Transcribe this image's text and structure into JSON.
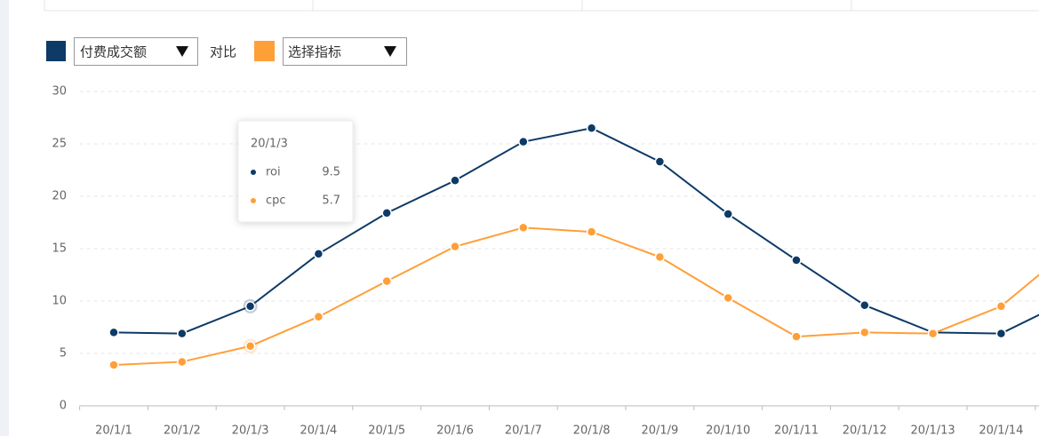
{
  "controls": {
    "metric": "付费成交额",
    "compare_label": "对比",
    "compare_metric": "选择指标"
  },
  "chart_data": {
    "type": "line",
    "categories": [
      "20/1/1",
      "20/1/2",
      "20/1/3",
      "20/1/4",
      "20/1/5",
      "20/1/6",
      "20/1/7",
      "20/1/8",
      "20/1/9",
      "20/1/10",
      "20/1/11",
      "20/1/12",
      "20/1/13",
      "20/1/14",
      null
    ],
    "series": [
      {
        "name": "roi",
        "color": "#0d3a66",
        "values": [
          7.0,
          6.9,
          9.5,
          14.5,
          18.4,
          21.5,
          25.2,
          26.5,
          23.3,
          18.3,
          13.9,
          9.6,
          7.0,
          6.9,
          10.1
        ]
      },
      {
        "name": "cpc",
        "color": "#ff9f38",
        "values": [
          3.9,
          4.2,
          5.7,
          8.5,
          11.9,
          15.2,
          17.0,
          16.6,
          14.2,
          10.3,
          6.6,
          7.0,
          6.9,
          9.5,
          14.9
        ]
      }
    ],
    "ylim": [
      0,
      30
    ],
    "yticks": [
      0,
      5,
      10,
      15,
      20,
      25,
      30
    ],
    "grid": true,
    "tooltip_index": 2
  }
}
